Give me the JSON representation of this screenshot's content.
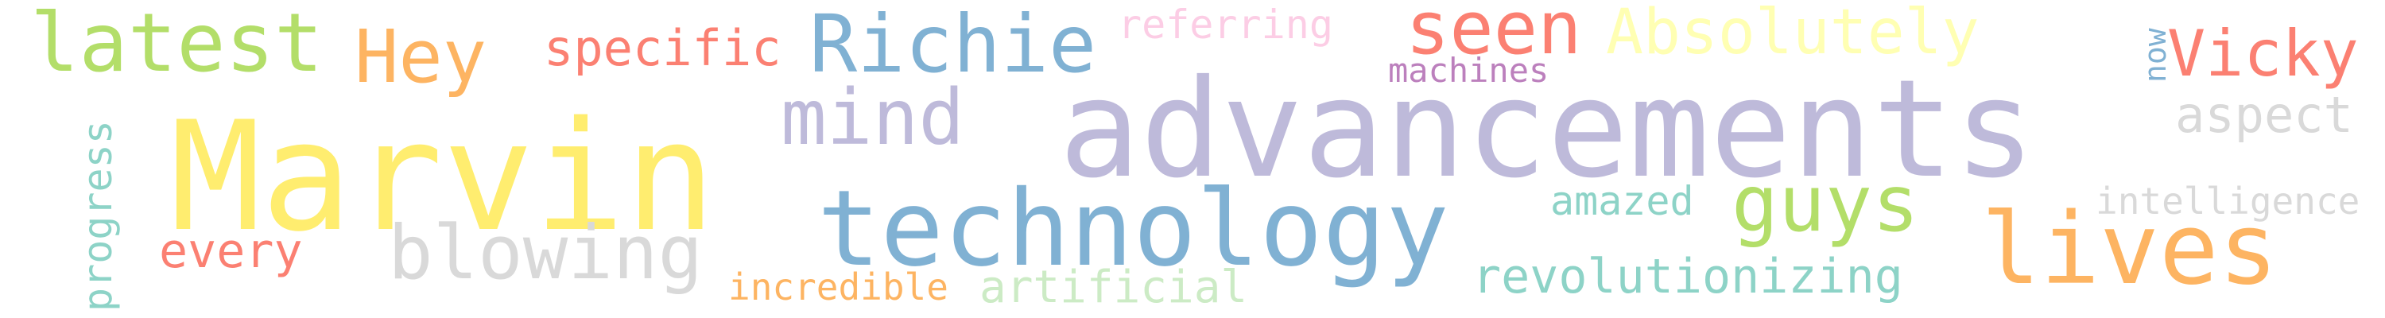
{
  "words": [
    {
      "text": "advancements",
      "color": "#bebada"
    },
    {
      "text": "Marvin",
      "color": "#ffed6f"
    },
    {
      "text": "technology",
      "color": "#80b1d3"
    },
    {
      "text": "lives",
      "color": "#fdb462"
    },
    {
      "text": "Richie",
      "color": "#80b1d3"
    },
    {
      "text": "latest",
      "color": "#b3de69"
    },
    {
      "text": "seen",
      "color": "#fb8072"
    },
    {
      "text": "Absolutely",
      "color": "#ffffb3"
    },
    {
      "text": "Hey",
      "color": "#fdb462"
    },
    {
      "text": "mind",
      "color": "#bebada"
    },
    {
      "text": "blowing",
      "color": "#d9d9d9"
    },
    {
      "text": "guys",
      "color": "#b3de69"
    },
    {
      "text": "Vicky",
      "color": "#fb8072"
    },
    {
      "text": "specific",
      "color": "#fb8072"
    },
    {
      "text": "referring",
      "color": "#fccde5"
    },
    {
      "text": "machines",
      "color": "#bc80bd"
    },
    {
      "text": "aspect",
      "color": "#d9d9d9"
    },
    {
      "text": "amazed",
      "color": "#8dd3c7"
    },
    {
      "text": "revolutionizing",
      "color": "#8dd3c7"
    },
    {
      "text": "every",
      "color": "#fb8072"
    },
    {
      "text": "incredible",
      "color": "#fdb462"
    },
    {
      "text": "artificial",
      "color": "#ccebc5"
    },
    {
      "text": "intelligence",
      "color": "#d9d9d9"
    },
    {
      "text": "progress",
      "color": "#8dd3c7"
    },
    {
      "text": "now",
      "color": "#80b1d3"
    }
  ]
}
